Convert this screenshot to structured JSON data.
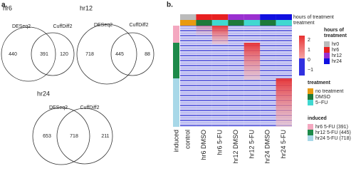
{
  "panel_a": {
    "label": "a.",
    "venns": [
      {
        "title": "hr6",
        "left_label": "DESeq2",
        "right_label": "CuffDiff2",
        "left_only": "440",
        "overlap": "391",
        "right_only": "120"
      },
      {
        "title": "hr12",
        "left_label": "DESeq2",
        "right_label": "CuffDiff2",
        "left_only": "718",
        "overlap": "445",
        "right_only": "88"
      },
      {
        "title": "hr24",
        "left_label": "DESeq2",
        "right_label": "CuffDiff2",
        "left_only": "653",
        "overlap": "718",
        "right_only": "211"
      }
    ]
  },
  "panel_b": {
    "label": "b.",
    "top_annotations": [
      "hours of treatment",
      "treatment"
    ],
    "columns": [
      "induced",
      "control",
      "hr6 DMSO",
      "hr6 5-FU",
      "hr12 DMSO",
      "hr12 5-FU",
      "hr24 DMSO",
      "hr24 5-FU"
    ],
    "color_scale": [
      "2",
      "1",
      "0",
      "−1"
    ],
    "legends": [
      {
        "title": [
          "hours of",
          "treatment"
        ],
        "items": [
          "hr0",
          "hr6",
          "hr12",
          "hr24"
        ]
      },
      {
        "title": [
          "treatment"
        ],
        "items": [
          "no treatment",
          "DMSO",
          "5−FU"
        ]
      },
      {
        "title": [
          "induced"
        ],
        "items": [
          "hr6 5-FU (391)",
          "hr12 5-FU (445)",
          "hr24 5-FU (718)"
        ]
      }
    ]
  }
}
